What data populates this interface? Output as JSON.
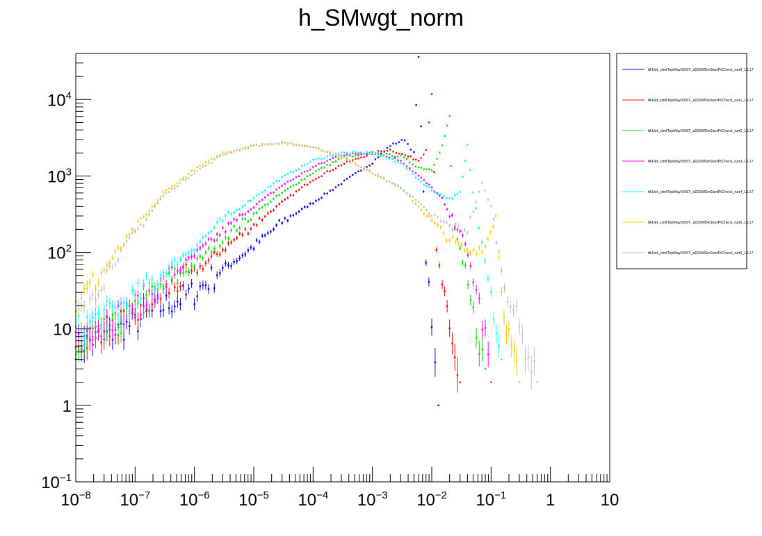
{
  "chart_data": {
    "type": "scatter",
    "title": "h_SMwgt_norm",
    "xlabel": "",
    "ylabel": "",
    "x_scale": "log",
    "y_scale": "log",
    "xlim": [
      1e-08,
      10
    ],
    "ylim": [
      0.1,
      40000
    ],
    "grid": false,
    "legend_position": "top-right",
    "x_tick_labels": [
      {
        "value": 1e-08,
        "base": "10",
        "exp": "−8"
      },
      {
        "value": 1e-07,
        "base": "10",
        "exp": "−7"
      },
      {
        "value": 1e-06,
        "base": "10",
        "exp": "−6"
      },
      {
        "value": 1e-05,
        "base": "10",
        "exp": "−5"
      },
      {
        "value": 0.0001,
        "base": "10",
        "exp": "−4"
      },
      {
        "value": 0.001,
        "base": "10",
        "exp": "−3"
      },
      {
        "value": 0.01,
        "base": "10",
        "exp": "−2"
      },
      {
        "value": 0.1,
        "base": "10",
        "exp": "−1"
      },
      {
        "value": 1,
        "base": "1",
        "exp": ""
      },
      {
        "value": 10,
        "base": "10",
        "exp": ""
      }
    ],
    "y_tick_labels": [
      {
        "value": 0.1,
        "base": "10",
        "exp": "−1"
      },
      {
        "value": 1,
        "base": "1",
        "exp": ""
      },
      {
        "value": 10,
        "base": "10",
        "exp": ""
      },
      {
        "value": 100,
        "base": "10",
        "exp": "2"
      },
      {
        "value": 1000,
        "base": "10",
        "exp": "3"
      },
      {
        "value": 10000,
        "base": "10",
        "exp": "4"
      }
    ],
    "series": [
      {
        "name": "ttHJet_ctmlTopMay03/ST_a022WDeStartPtCheck_run0_UL17",
        "color": "#0000ff",
        "points": [
          [
            1e-08,
            6
          ],
          [
            3e-08,
            8
          ],
          [
            1e-07,
            12
          ],
          [
            3e-07,
            20
          ],
          [
            1e-06,
            30
          ],
          [
            3e-06,
            60
          ],
          [
            1e-05,
            120
          ],
          [
            3e-05,
            250
          ],
          [
            0.0001,
            450
          ],
          [
            0.0003,
            800
          ],
          [
            0.001,
            1500
          ],
          [
            0.002,
            2500
          ],
          [
            0.0035,
            3000
          ],
          [
            0.005,
            2000
          ],
          [
            0.006,
            35000
          ],
          [
            0.008,
            80
          ],
          [
            0.01,
            10
          ],
          [
            0.013,
            1
          ]
        ]
      },
      {
        "name": "ttHJet_ctmlTopMay03/ST_a022WDeStartPtCheck_run1_UL17",
        "color": "#ff0000",
        "points": [
          [
            1e-08,
            7
          ],
          [
            3e-08,
            10
          ],
          [
            1e-07,
            15
          ],
          [
            3e-07,
            30
          ],
          [
            1e-06,
            55
          ],
          [
            3e-06,
            110
          ],
          [
            1e-05,
            230
          ],
          [
            3e-05,
            450
          ],
          [
            0.0001,
            900
          ],
          [
            0.0003,
            1400
          ],
          [
            0.001,
            2000
          ],
          [
            0.002,
            2200
          ],
          [
            0.004,
            1800
          ],
          [
            0.006,
            1600
          ],
          [
            0.008,
            2200
          ],
          [
            0.01,
            12000
          ],
          [
            0.012,
            100
          ],
          [
            0.015,
            40
          ],
          [
            0.02,
            8
          ],
          [
            0.03,
            2
          ]
        ]
      },
      {
        "name": "ttHJet_ctmlTopMay03/ST_a022WDeStartPtCheck_run2_UL17",
        "color": "#00dd00",
        "points": [
          [
            1e-08,
            5
          ],
          [
            3e-08,
            9
          ],
          [
            1e-07,
            16
          ],
          [
            3e-07,
            35
          ],
          [
            1e-06,
            70
          ],
          [
            3e-06,
            150
          ],
          [
            1e-05,
            320
          ],
          [
            3e-05,
            600
          ],
          [
            0.0001,
            1100
          ],
          [
            0.0003,
            1700
          ],
          [
            0.001,
            2000
          ],
          [
            0.003,
            1800
          ],
          [
            0.006,
            1300
          ],
          [
            0.01,
            1200
          ],
          [
            0.015,
            2500
          ],
          [
            0.02,
            6000
          ],
          [
            0.022,
            300
          ],
          [
            0.03,
            100
          ],
          [
            0.05,
            15
          ],
          [
            0.08,
            3
          ]
        ]
      },
      {
        "name": "ttHJet_ctmlTopMay03/ST_a022WDeStartPtCheck_run3_UL17",
        "color": "#ff00ff",
        "points": [
          [
            1e-08,
            8
          ],
          [
            3e-08,
            12
          ],
          [
            1e-07,
            20
          ],
          [
            3e-07,
            40
          ],
          [
            1e-06,
            90
          ],
          [
            3e-06,
            190
          ],
          [
            1e-05,
            400
          ],
          [
            3e-05,
            750
          ],
          [
            0.0001,
            1300
          ],
          [
            0.0003,
            1900
          ],
          [
            0.001,
            2000
          ],
          [
            0.003,
            1600
          ],
          [
            0.006,
            1000
          ],
          [
            0.01,
            700
          ],
          [
            0.015,
            500
          ],
          [
            0.02,
            300
          ],
          [
            0.03,
            200
          ],
          [
            0.05,
            50
          ],
          [
            0.08,
            8
          ],
          [
            0.1,
            2
          ]
        ]
      },
      {
        "name": "ttHJet_ctmlTopMay03/ST_a022WDeStartPtCheck_run4_UL17",
        "color": "#00ffff",
        "points": [
          [
            1e-08,
            10
          ],
          [
            3e-08,
            15
          ],
          [
            1e-07,
            25
          ],
          [
            3e-07,
            55
          ],
          [
            1e-06,
            120
          ],
          [
            3e-06,
            260
          ],
          [
            1e-05,
            520
          ],
          [
            3e-05,
            950
          ],
          [
            0.0001,
            1600
          ],
          [
            0.0003,
            2000
          ],
          [
            0.001,
            2000
          ],
          [
            0.003,
            1500
          ],
          [
            0.006,
            900
          ],
          [
            0.01,
            650
          ],
          [
            0.02,
            500
          ],
          [
            0.03,
            600
          ],
          [
            0.04,
            2500
          ],
          [
            0.05,
            600
          ],
          [
            0.07,
            150
          ],
          [
            0.1,
            30
          ],
          [
            0.15,
            4
          ]
        ]
      },
      {
        "name": "ttHJet_ctmlTopMay03/ST_a022WDeStartPtCheck_run5_UL17",
        "color": "#ffcc00",
        "points": [
          [
            1e-08,
            20
          ],
          [
            3e-08,
            60
          ],
          [
            1e-07,
            200
          ],
          [
            3e-07,
            600
          ],
          [
            1e-06,
            1200
          ],
          [
            3e-06,
            2000
          ],
          [
            1e-05,
            2500
          ],
          [
            3e-05,
            2700
          ],
          [
            0.0001,
            2400
          ],
          [
            0.0003,
            1800
          ],
          [
            0.001,
            1100
          ],
          [
            0.003,
            700
          ],
          [
            0.006,
            400
          ],
          [
            0.01,
            250
          ],
          [
            0.02,
            150
          ],
          [
            0.04,
            100
          ],
          [
            0.08,
            120
          ],
          [
            0.12,
            300
          ],
          [
            0.15,
            30
          ],
          [
            0.2,
            8
          ],
          [
            0.3,
            2
          ]
        ]
      },
      {
        "name": "ttHJet_ctmlTopMay03/ST_a022WDeStartPtCheck_run6_UL17",
        "color": "#c0c0c0",
        "points": [
          [
            1e-08,
            15
          ],
          [
            3e-08,
            50
          ],
          [
            1e-07,
            180
          ],
          [
            3e-07,
            550
          ],
          [
            1e-06,
            1100
          ],
          [
            3e-06,
            1900
          ],
          [
            1e-05,
            2500
          ],
          [
            3e-05,
            2700
          ],
          [
            0.0001,
            2400
          ],
          [
            0.0003,
            1800
          ],
          [
            0.001,
            1100
          ],
          [
            0.003,
            700
          ],
          [
            0.006,
            450
          ],
          [
            0.01,
            300
          ],
          [
            0.02,
            220
          ],
          [
            0.04,
            200
          ],
          [
            0.07,
            800
          ],
          [
            0.1,
            400
          ],
          [
            0.15,
            60
          ],
          [
            0.3,
            10
          ],
          [
            0.6,
            2
          ]
        ]
      }
    ]
  }
}
